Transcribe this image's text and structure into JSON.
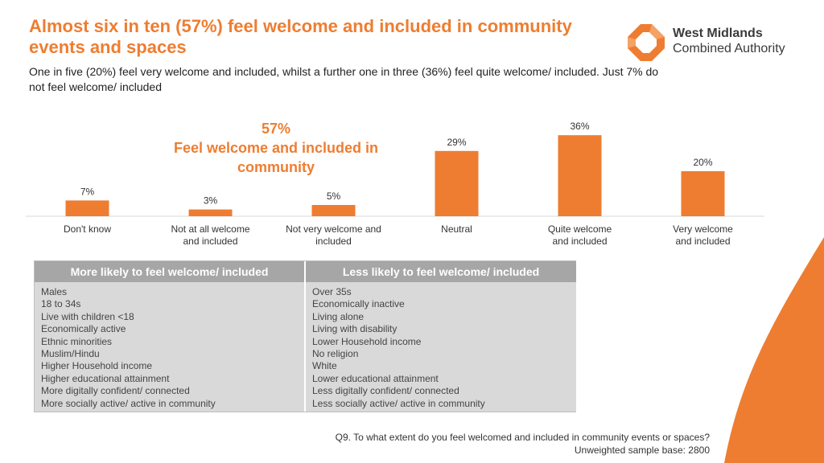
{
  "title": "Almost six in ten (57%) feel welcome and included in community events and spaces",
  "subtitle": "One in five (20%) feel very welcome and included, whilst a further one in three (36%) feel quite welcome/ included. Just 7% do not feel welcome/ included",
  "logo": {
    "line1": "West Midlands",
    "line2": "Combined Authority",
    "color": "#ee7d31"
  },
  "callout": {
    "value": "57%",
    "label": "Feel welcome and included in community"
  },
  "chart_data": {
    "type": "bar",
    "categories": [
      "Don't know",
      "Not at all welcome and included",
      "Not very welcome and included",
      "Neutral",
      "Quite welcome and included",
      "Very welcome and included"
    ],
    "values": [
      7,
      3,
      5,
      29,
      36,
      20
    ],
    "value_labels": [
      "7%",
      "3%",
      "5%",
      "29%",
      "36%",
      "20%"
    ],
    "unit": "%",
    "ylim": [
      0,
      40
    ],
    "bar_color": "#ee7d31",
    "grid": false,
    "legend": "none"
  },
  "groups": {
    "more": {
      "header": "More likely to feel welcome/ included",
      "items": [
        "Males",
        "18 to 34s",
        "Live with children <18",
        "Economically active",
        "Ethnic minorities",
        "Muslim/Hindu",
        "Higher Household income",
        "Higher educational attainment",
        "More digitally confident/ connected",
        "More socially active/ active in community"
      ]
    },
    "less": {
      "header": "Less likely to feel welcome/ included",
      "items": [
        "Over 35s",
        "Economically inactive",
        "Living alone",
        "Living with disability",
        "Lower Household income",
        "No religion",
        "White",
        "Lower educational attainment",
        "Less digitally confident/ connected",
        "Less socially active/ active in community"
      ]
    }
  },
  "footnote": {
    "question": "Q9. To what extent do you feel welcomed and included in community events or spaces?",
    "base": "Unweighted sample base: 2800"
  }
}
